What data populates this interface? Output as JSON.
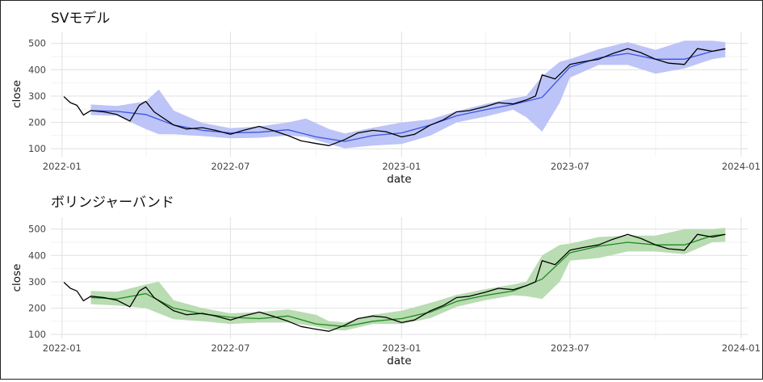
{
  "chart_data": [
    {
      "type": "line",
      "title": "SVモデル",
      "xlabel": "date",
      "ylabel": "close",
      "x_ticks": [
        "2022-01",
        "2022-07",
        "2023-01",
        "2023-07",
        "2024-01"
      ],
      "y_ticks": [
        100,
        200,
        300,
        400,
        500
      ],
      "xlim": [
        "2021-12-20",
        "2024-01-08"
      ],
      "ylim": [
        70,
        545
      ],
      "grid": true,
      "band_color": "#bdc4f7",
      "mean_color": "#3a55e0",
      "close_color": "#000000",
      "series": [
        {
          "role": "band",
          "x": [
            "2022-02-01",
            "2022-03-01",
            "2022-04-01",
            "2022-04-15",
            "2022-05-01",
            "2022-06-01",
            "2022-07-01",
            "2022-08-01",
            "2022-09-01",
            "2022-09-20",
            "2022-10-15",
            "2022-11-01",
            "2022-12-01",
            "2023-01-01",
            "2023-02-01",
            "2023-03-01",
            "2023-04-01",
            "2023-05-01",
            "2023-05-15",
            "2023-06-01",
            "2023-06-20",
            "2023-07-01",
            "2023-08-01",
            "2023-09-01",
            "2023-10-01",
            "2023-11-01",
            "2023-12-01",
            "2023-12-15"
          ],
          "upper": [
            268,
            262,
            280,
            325,
            245,
            198,
            178,
            185,
            200,
            215,
            175,
            158,
            180,
            200,
            212,
            242,
            270,
            292,
            300,
            375,
            430,
            440,
            478,
            505,
            475,
            510,
            510,
            505
          ],
          "lower": [
            228,
            225,
            175,
            155,
            155,
            148,
            140,
            142,
            150,
            145,
            118,
            102,
            112,
            118,
            150,
            200,
            222,
            248,
            220,
            165,
            275,
            370,
            418,
            418,
            385,
            405,
            440,
            448
          ]
        },
        {
          "role": "mean",
          "x": [
            "2022-02-01",
            "2022-03-01",
            "2022-04-01",
            "2022-05-01",
            "2022-06-01",
            "2022-07-01",
            "2022-08-01",
            "2022-09-01",
            "2022-10-01",
            "2022-11-01",
            "2022-12-01",
            "2023-01-01",
            "2023-02-01",
            "2023-03-01",
            "2023-04-01",
            "2023-05-01",
            "2023-06-01",
            "2023-07-01",
            "2023-08-01",
            "2023-09-01",
            "2023-10-01",
            "2023-11-01",
            "2023-12-01",
            "2023-12-15"
          ],
          "y": [
            245,
            242,
            230,
            190,
            170,
            160,
            163,
            172,
            145,
            128,
            150,
            160,
            190,
            225,
            248,
            268,
            295,
            410,
            445,
            462,
            440,
            440,
            470,
            478
          ]
        },
        {
          "role": "close",
          "x": [
            "2022-01-03",
            "2022-01-10",
            "2022-01-17",
            "2022-01-24",
            "2022-02-01",
            "2022-02-15",
            "2022-03-01",
            "2022-03-15",
            "2022-03-25",
            "2022-04-01",
            "2022-04-10",
            "2022-05-01",
            "2022-05-15",
            "2022-06-01",
            "2022-06-15",
            "2022-07-01",
            "2022-07-15",
            "2022-08-01",
            "2022-08-15",
            "2022-09-01",
            "2022-09-15",
            "2022-10-01",
            "2022-10-15",
            "2022-11-01",
            "2022-11-15",
            "2022-12-01",
            "2022-12-15",
            "2023-01-01",
            "2023-01-15",
            "2023-02-01",
            "2023-02-15",
            "2023-03-01",
            "2023-03-15",
            "2023-04-01",
            "2023-04-15",
            "2023-05-01",
            "2023-05-15",
            "2023-05-25",
            "2023-06-01",
            "2023-06-15",
            "2023-07-01",
            "2023-07-15",
            "2023-08-01",
            "2023-08-15",
            "2023-09-01",
            "2023-09-15",
            "2023-10-01",
            "2023-10-15",
            "2023-11-01",
            "2023-11-15",
            "2023-12-01",
            "2023-12-15"
          ],
          "y": [
            298,
            275,
            265,
            228,
            245,
            240,
            230,
            205,
            265,
            280,
            240,
            190,
            175,
            180,
            170,
            155,
            170,
            185,
            170,
            150,
            130,
            120,
            112,
            135,
            160,
            170,
            165,
            145,
            155,
            190,
            210,
            240,
            245,
            260,
            275,
            270,
            285,
            300,
            380,
            365,
            420,
            430,
            440,
            460,
            480,
            465,
            440,
            425,
            420,
            480,
            470,
            480
          ]
        }
      ]
    },
    {
      "type": "line",
      "title": "ボリンジャーバンド",
      "xlabel": "date",
      "ylabel": "close",
      "x_ticks": [
        "2022-01",
        "2022-07",
        "2023-01",
        "2023-07",
        "2024-01"
      ],
      "y_ticks": [
        100,
        200,
        300,
        400,
        500
      ],
      "xlim": [
        "2021-12-20",
        "2024-01-08"
      ],
      "ylim": [
        85,
        545
      ],
      "grid": true,
      "band_color": "#b9dcb2",
      "mean_color": "#1f8a1f",
      "close_color": "#000000",
      "series": [
        {
          "role": "band",
          "x": [
            "2022-02-01",
            "2022-03-01",
            "2022-04-01",
            "2022-04-15",
            "2022-05-01",
            "2022-06-01",
            "2022-07-01",
            "2022-08-01",
            "2022-09-01",
            "2022-10-01",
            "2022-10-15",
            "2022-11-01",
            "2022-12-01",
            "2023-01-01",
            "2023-02-01",
            "2023-03-01",
            "2023-04-01",
            "2023-05-01",
            "2023-05-15",
            "2023-06-01",
            "2023-06-20",
            "2023-07-01",
            "2023-08-01",
            "2023-09-01",
            "2023-10-01",
            "2023-11-01",
            "2023-12-01",
            "2023-12-15"
          ],
          "upper": [
            265,
            262,
            290,
            300,
            230,
            200,
            180,
            185,
            195,
            175,
            150,
            145,
            175,
            190,
            220,
            250,
            272,
            290,
            300,
            400,
            440,
            445,
            470,
            475,
            475,
            500,
            500,
            505
          ],
          "lower": [
            215,
            210,
            200,
            180,
            158,
            150,
            140,
            145,
            145,
            130,
            118,
            115,
            140,
            140,
            162,
            205,
            230,
            248,
            245,
            235,
            300,
            380,
            390,
            415,
            415,
            405,
            450,
            452
          ]
        },
        {
          "role": "mean",
          "x": [
            "2022-02-01",
            "2022-03-01",
            "2022-04-01",
            "2022-05-01",
            "2022-06-01",
            "2022-07-01",
            "2022-08-01",
            "2022-09-01",
            "2022-10-01",
            "2022-11-01",
            "2022-12-01",
            "2023-01-01",
            "2023-02-01",
            "2023-03-01",
            "2023-04-01",
            "2023-05-01",
            "2023-06-01",
            "2023-07-01",
            "2023-08-01",
            "2023-09-01",
            "2023-10-01",
            "2023-11-01",
            "2023-12-01",
            "2023-12-15"
          ],
          "y": [
            240,
            235,
            255,
            200,
            178,
            165,
            160,
            170,
            140,
            130,
            150,
            160,
            185,
            225,
            248,
            265,
            310,
            410,
            435,
            450,
            440,
            440,
            475,
            480
          ]
        },
        {
          "role": "close",
          "x": [
            "2022-01-03",
            "2022-01-10",
            "2022-01-17",
            "2022-01-24",
            "2022-02-01",
            "2022-02-15",
            "2022-03-01",
            "2022-03-15",
            "2022-03-25",
            "2022-04-01",
            "2022-04-10",
            "2022-05-01",
            "2022-05-15",
            "2022-06-01",
            "2022-06-15",
            "2022-07-01",
            "2022-07-15",
            "2022-08-01",
            "2022-08-15",
            "2022-09-01",
            "2022-09-15",
            "2022-10-01",
            "2022-10-15",
            "2022-11-01",
            "2022-11-15",
            "2022-12-01",
            "2022-12-15",
            "2023-01-01",
            "2023-01-15",
            "2023-02-01",
            "2023-02-15",
            "2023-03-01",
            "2023-03-15",
            "2023-04-01",
            "2023-04-15",
            "2023-05-01",
            "2023-05-15",
            "2023-05-25",
            "2023-06-01",
            "2023-06-15",
            "2023-07-01",
            "2023-07-15",
            "2023-08-01",
            "2023-08-15",
            "2023-09-01",
            "2023-09-15",
            "2023-10-01",
            "2023-10-15",
            "2023-11-01",
            "2023-11-15",
            "2023-12-01",
            "2023-12-15"
          ],
          "y": [
            298,
            275,
            265,
            228,
            245,
            240,
            230,
            205,
            265,
            280,
            240,
            190,
            175,
            180,
            170,
            155,
            170,
            185,
            170,
            150,
            130,
            120,
            112,
            135,
            160,
            170,
            165,
            145,
            155,
            190,
            210,
            240,
            245,
            260,
            275,
            270,
            285,
            300,
            380,
            365,
            420,
            430,
            440,
            460,
            480,
            465,
            440,
            425,
            420,
            480,
            470,
            480
          ]
        }
      ]
    }
  ]
}
